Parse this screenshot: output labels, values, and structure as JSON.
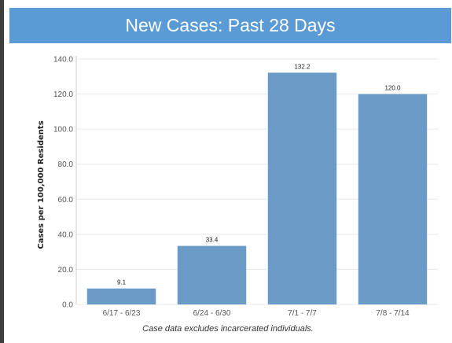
{
  "title": "New Cases: Past 28 Days",
  "footnote": "Case data excludes incarcerated individuals.",
  "chart_data": {
    "type": "bar",
    "title": "New Cases: Past 28 Days",
    "xlabel": "",
    "ylabel": "Cases per 100,000 Residents",
    "categories": [
      "6/17 - 6/23",
      "6/24 - 6/30",
      "7/1 - 7/7",
      "7/8 - 7/14"
    ],
    "values": [
      9.1,
      33.4,
      132.2,
      120.0
    ],
    "value_labels": [
      "9.1",
      "33.4",
      "132.2",
      "120.0"
    ],
    "ylim": [
      0,
      140
    ],
    "yticks": [
      "0.0",
      "20.0",
      "40.0",
      "60.0",
      "80.0",
      "100.0",
      "120.0",
      "140.0"
    ],
    "ytick_values": [
      0,
      20,
      40,
      60,
      80,
      100,
      120,
      140
    ],
    "grid": true,
    "bar_color": "#6a9bc7",
    "grid_color": "#e8e8e8"
  }
}
